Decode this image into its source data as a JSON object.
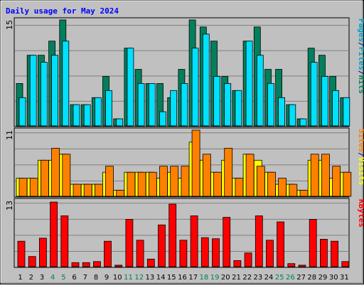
{
  "chart_data": {
    "type": "bar",
    "title": "Daily usage for May 2024",
    "categories": [
      "1",
      "2",
      "3",
      "4",
      "5",
      "6",
      "7",
      "8",
      "9",
      "10",
      "11",
      "12",
      "13",
      "14",
      "15",
      "16",
      "17",
      "18",
      "19",
      "20",
      "21",
      "22",
      "23",
      "24",
      "25",
      "26",
      "27",
      "28",
      "29",
      "30",
      "31"
    ],
    "weekend_days": [
      "4",
      "5",
      "11",
      "12",
      "18",
      "19",
      "25",
      "26"
    ],
    "panels": [
      {
        "name": "pages-files-hits",
        "ymax_label": "15",
        "ylim": [
          0,
          15
        ],
        "legend": [
          {
            "text": "Pages",
            "color": "#00a0c0"
          },
          {
            "text": "/",
            "color": "#00007f"
          },
          {
            "text": "Files",
            "color": "#00a0c0"
          },
          {
            "text": "/",
            "color": "#00007f"
          },
          {
            "text": "Hits",
            "color": "#00805c"
          }
        ],
        "series": [
          {
            "name": "Hits",
            "color": "#00805c",
            "values": [
              6,
              10,
              10,
              12,
              15,
              3,
              3,
              4,
              7,
              1,
              11,
              8,
              6,
              6,
              4,
              8,
              15,
              14,
              12,
              7,
              5,
              12,
              14,
              8,
              8,
              3,
              1,
              11,
              10,
              7,
              4
            ]
          },
          {
            "name": "Files",
            "color": "#00e0ff",
            "values": [
              4,
              10,
              9,
              10,
              12,
              3,
              3,
              4,
              5,
              1,
              11,
              6,
              6,
              2,
              5,
              6,
              11,
              13,
              7,
              6,
              5,
              12,
              10,
              6,
              4,
              3,
              1,
              9,
              7,
              5,
              4
            ]
          },
          {
            "name": "Pages",
            "color": "#00e0ff",
            "values": [
              0,
              0,
              0,
              0,
              0,
              0,
              0,
              0,
              0,
              0,
              0,
              0,
              0,
              0,
              0,
              0,
              0,
              0,
              0,
              0,
              0,
              0,
              0,
              0,
              0,
              0,
              0,
              0,
              0,
              0,
              0
            ]
          }
        ]
      },
      {
        "name": "sites-visits",
        "ymax_label": "11",
        "ylim": [
          0,
          11
        ],
        "legend": [
          {
            "text": "Sites",
            "color": "#ff8000"
          },
          {
            "text": "/",
            "color": "#00007f"
          },
          {
            "text": "Visits",
            "color": "#ffff00"
          }
        ],
        "series": [
          {
            "name": "Visits",
            "color": "#ffff00",
            "values": [
              3,
              3,
              6,
              6,
              7,
              2,
              2,
              2,
              4,
              1,
              4,
              4,
              4,
              3,
              4,
              3,
              9,
              6,
              4,
              6,
              3,
              7,
              6,
              4,
              2,
              2,
              1,
              6,
              6,
              3,
              4
            ]
          },
          {
            "name": "Sites",
            "color": "#ff8000",
            "values": [
              3,
              3,
              6,
              8,
              7,
              2,
              2,
              2,
              5,
              1,
              4,
              4,
              4,
              5,
              5,
              5,
              11,
              7,
              4,
              8,
              3,
              7,
              5,
              4,
              3,
              2,
              1,
              7,
              7,
              5,
              4
            ]
          }
        ]
      },
      {
        "name": "kbytes",
        "ymax_label": "13",
        "ylim": [
          0,
          13
        ],
        "legend": [
          {
            "text": "KBytes",
            "color": "#ff0000"
          }
        ],
        "series": [
          {
            "name": "KBytes",
            "color": "#ff0000",
            "values": [
              5,
              2,
              5.6,
              12.7,
              10,
              0.8,
              0.8,
              1,
              5,
              0.3,
              9.3,
              5.2,
              1.5,
              8.2,
              12.3,
              5.2,
              10,
              5.7,
              5.5,
              9.7,
              1.2,
              2.7,
              10,
              5.2,
              8.8,
              0.6,
              0.3,
              9.3,
              5.4,
              5,
              1
            ]
          }
        ]
      }
    ]
  }
}
